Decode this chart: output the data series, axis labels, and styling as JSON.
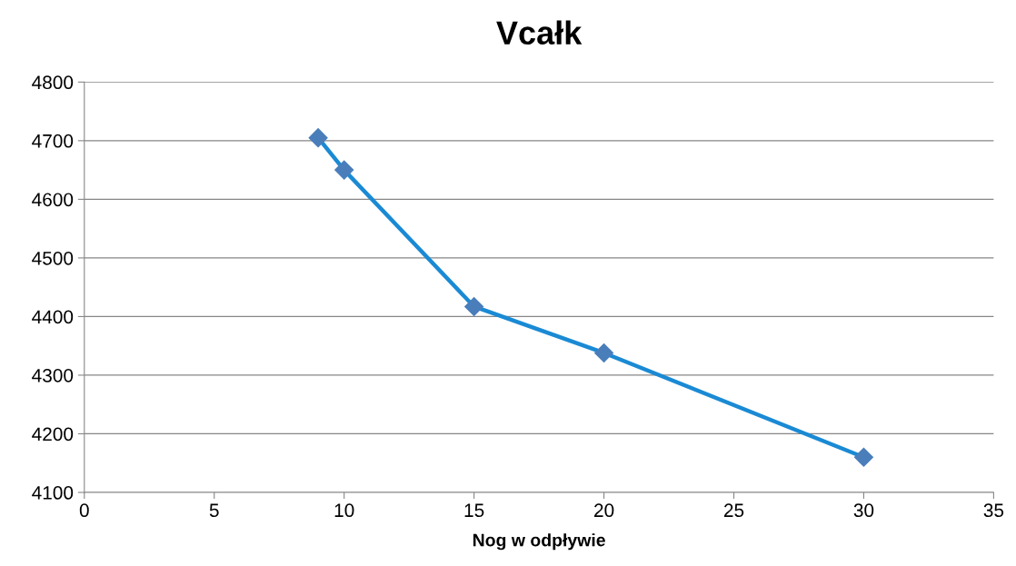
{
  "chart_data": {
    "type": "line",
    "title": "Vcałk",
    "xlabel": "Nog w odpływie",
    "x": [
      9,
      10,
      15,
      20,
      30
    ],
    "series": [
      {
        "color": "#1a8ad4",
        "values": [
          4705,
          4650,
          4417,
          4338,
          4160
        ]
      }
    ],
    "xlim": [
      0,
      35
    ],
    "xticks": [
      0,
      5,
      10,
      15,
      20,
      25,
      30,
      35
    ],
    "ylim": [
      4100,
      4800
    ],
    "yticks": [
      4100,
      4200,
      4300,
      4400,
      4500,
      4600,
      4700,
      4800
    ],
    "grid": "y",
    "marker": "diamond",
    "line_style": "solid"
  }
}
